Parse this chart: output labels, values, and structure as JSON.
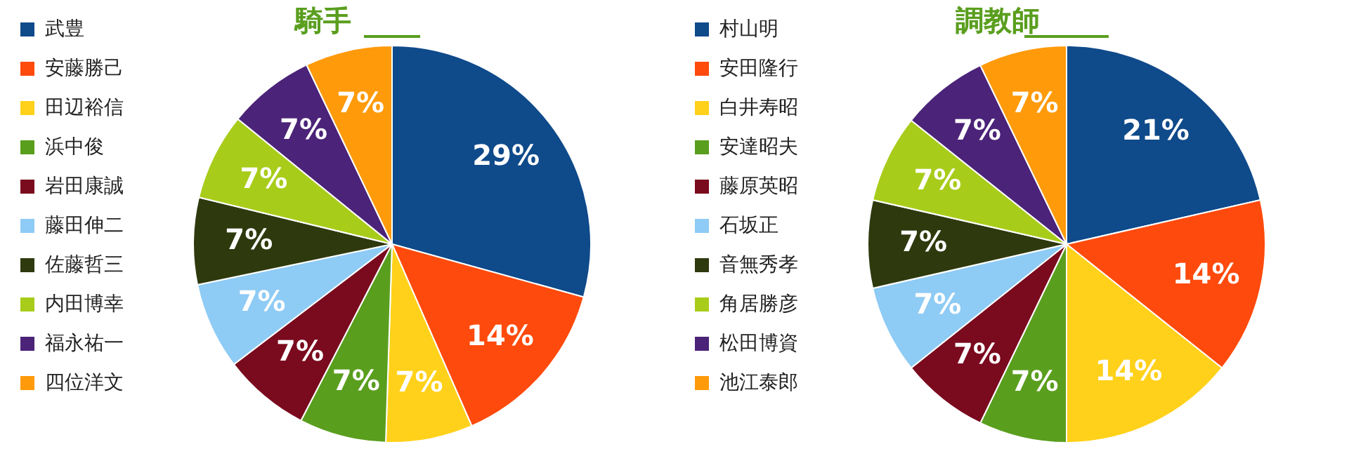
{
  "chart_data": [
    {
      "type": "pie",
      "title": "騎手",
      "legend": "left",
      "categories": [
        "武豊",
        "安藤勝己",
        "田辺裕信",
        "浜中俊",
        "岩田康誠",
        "藤田伸二",
        "佐藤哲三",
        "内田博幸",
        "福永祐一",
        "四位洋文"
      ],
      "values": [
        29,
        14,
        7,
        7,
        7,
        7,
        7,
        7,
        7,
        7
      ],
      "value_labels": [
        "29%",
        "14%",
        "7%",
        "7%",
        "7%",
        "7%",
        "7%",
        "7%",
        "7%",
        "7%"
      ],
      "colors": [
        "#0f4a8a",
        "#fe4a0c",
        "#ffd11a",
        "#5a9e1e",
        "#7a0a1e",
        "#8ecbf5",
        "#2e3a0e",
        "#a8cc1a",
        "#4b2378",
        "#ff9a0a"
      ]
    },
    {
      "type": "pie",
      "title": "調教師",
      "legend": "left",
      "categories": [
        "村山明",
        "安田隆行",
        "白井寿昭",
        "安達昭夫",
        "藤原英昭",
        "石坂正",
        "音無秀孝",
        "角居勝彦",
        "松田博資",
        "池江泰郎"
      ],
      "values": [
        21,
        14,
        14,
        7,
        7,
        7,
        7,
        7,
        7,
        7
      ],
      "value_labels": [
        "21%",
        "14%",
        "14%",
        "7%",
        "7%",
        "7%",
        "7%",
        "7%",
        "7%",
        "7%"
      ],
      "colors": [
        "#0f4a8a",
        "#fe4a0c",
        "#ffd11a",
        "#5a9e1e",
        "#7a0a1e",
        "#8ecbf5",
        "#2e3a0e",
        "#a8cc1a",
        "#4b2378",
        "#ff9a0a"
      ]
    }
  ]
}
